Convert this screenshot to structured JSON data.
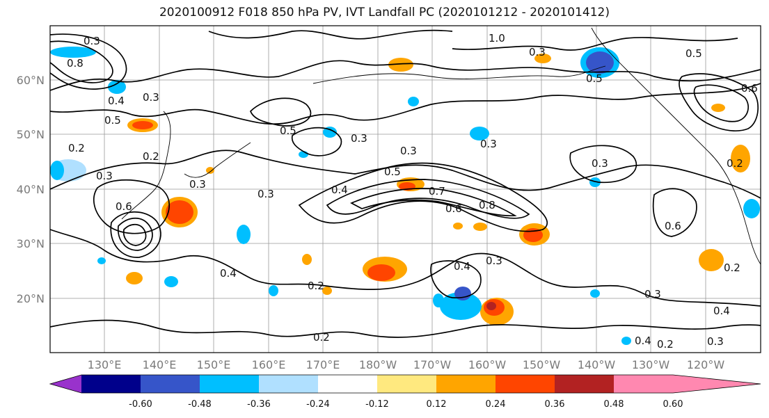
{
  "title": "2020100912 F018 850 hPa PV, IVT Landfall PC (2020101212 - 2020101412)",
  "lat_labels": [
    "60°N",
    "50°N",
    "40°N",
    "30°N",
    "20°N"
  ],
  "lon_labels": [
    "130°E",
    "140°E",
    "150°E",
    "160°E",
    "170°E",
    "180°W",
    "170°W",
    "160°W",
    "150°W",
    "140°W",
    "130°W",
    "120°W"
  ],
  "contour_labels": [
    "0.3",
    "0.8",
    "0.3",
    "0.5",
    "0.4",
    "0.2",
    "0.2",
    "0.3",
    "0.6",
    "0.3",
    "0.5",
    "0.3",
    "0.4",
    "0.5",
    "0.7",
    "0.6",
    "0.8",
    "0.3",
    "0.3",
    "1.0",
    "0.3",
    "0.5",
    "0.6",
    "0.3",
    "0.4",
    "0.3",
    "0.2",
    "0.4",
    "0.2",
    "0.2",
    "0.3",
    "0.4",
    "0.2",
    "0.3",
    "0.6",
    "0.2",
    "0.5",
    "0.3",
    "0.4"
  ],
  "colorbar": {
    "colors": [
      "#9932cc",
      "#00008b",
      "#3655c9",
      "#00bfff",
      "#b0e0ff",
      "#ffffff",
      "#ffe97f",
      "#ffa500",
      "#ff4500",
      "#b22222",
      "#ff88b0"
    ],
    "tick_labels": [
      "-0.60",
      "-0.48",
      "-0.36",
      "-0.24",
      "-0.12",
      "0.12",
      "0.24",
      "0.36",
      "0.48",
      "0.60"
    ]
  }
}
